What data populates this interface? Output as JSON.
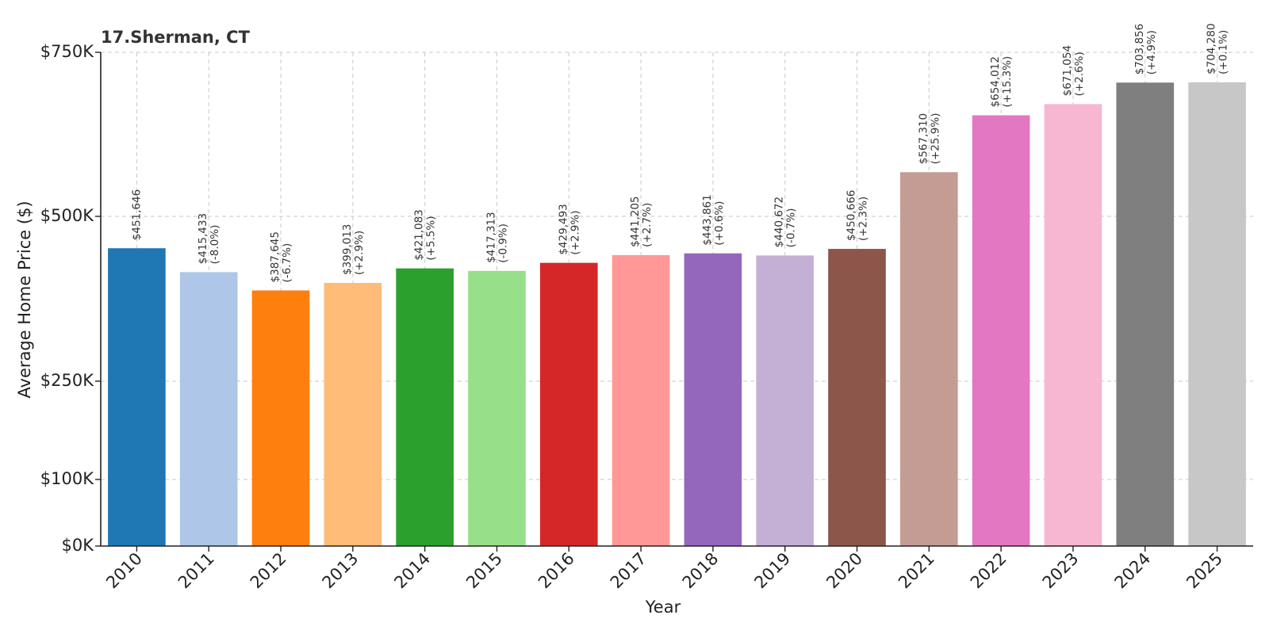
{
  "chart_data": {
    "type": "bar",
    "title": "17.Sherman, CT",
    "xlabel": "Year",
    "ylabel": "Average Home Price ($)",
    "categories": [
      "2010",
      "2011",
      "2012",
      "2013",
      "2014",
      "2015",
      "2016",
      "2017",
      "2018",
      "2019",
      "2020",
      "2021",
      "2022",
      "2023",
      "2024",
      "2025"
    ],
    "values": [
      451646,
      415433,
      387645,
      399013,
      421083,
      417313,
      429493,
      441205,
      443861,
      440672,
      450666,
      567310,
      654012,
      671054,
      703856,
      704280
    ],
    "value_labels": [
      "$451,646",
      "$415,433",
      "$387,645",
      "$399,013",
      "$421,083",
      "$417,313",
      "$429,493",
      "$441,205",
      "$443,861",
      "$440,672",
      "$450,666",
      "$567,310",
      "$654,012",
      "$671,054",
      "$703,856",
      "$704,280"
    ],
    "change_labels": [
      "",
      "(-8.0%)",
      "(-6.7%)",
      "(+2.9%)",
      "(+5.5%)",
      "(-0.9%)",
      "(+2.9%)",
      "(+2.7%)",
      "(+0.6%)",
      "(-0.7%)",
      "(+2.3%)",
      "(+25.9%)",
      "(+15.3%)",
      "(+2.6%)",
      "(+4.9%)",
      "(+0.1%)"
    ],
    "colors": [
      "#1f77b4",
      "#aec7e8",
      "#ff7f0e",
      "#ffbb78",
      "#2ca02c",
      "#98df8a",
      "#d62728",
      "#ff9896",
      "#9467bd",
      "#c5b0d5",
      "#8c564b",
      "#c49c94",
      "#e377c2",
      "#f7b6d2",
      "#7f7f7f",
      "#c7c7c7"
    ],
    "yticks": [
      0,
      100000,
      250000,
      500000,
      750000
    ],
    "ytick_labels": [
      "$0K",
      "$100K",
      "$250K",
      "$500K",
      "$750K"
    ],
    "ylim": [
      0,
      750000
    ],
    "grid": true
  }
}
